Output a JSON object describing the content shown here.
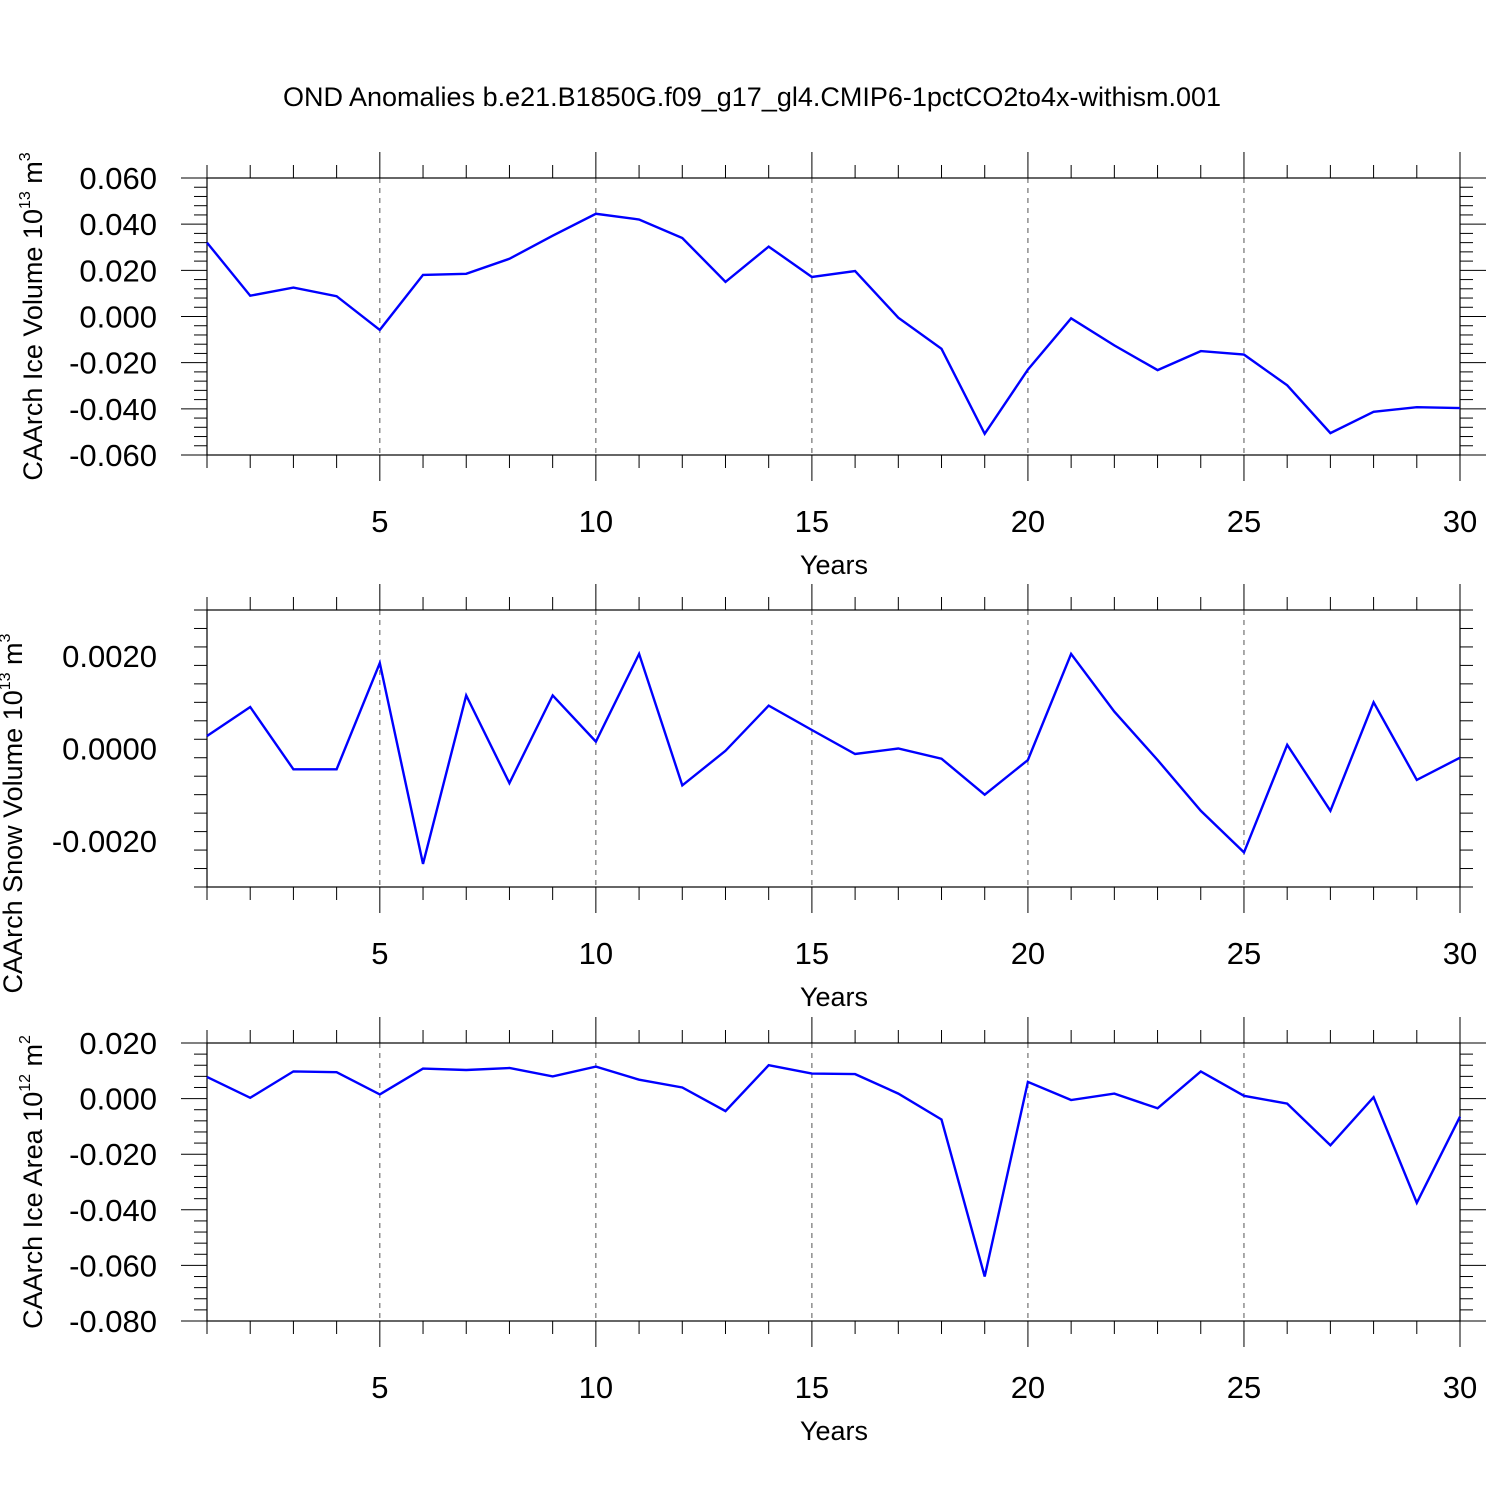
{
  "title": "OND Anomalies b.e21.B1850G.f09_g17_gl4.CMIP6-1pctCO2to4x-withism.001",
  "colors": {
    "line": "#0000ff",
    "frame": "#000000",
    "grid": "#555555"
  },
  "chart_data": [
    {
      "type": "line",
      "ylabel": "CAArch Ice Volume 10",
      "ylabel_exp": "13",
      "ylabel_unit": " m",
      "ylabel_unit_exp": "3",
      "xlabel": "Years",
      "xlim": [
        1,
        30
      ],
      "ylim": [
        -0.06,
        0.06
      ],
      "xticks": [
        5,
        10,
        15,
        20,
        25,
        30
      ],
      "yticks": [
        -0.06,
        -0.04,
        -0.02,
        0.0,
        0.02,
        0.04,
        0.06
      ],
      "yticklabels": [
        "-0.060",
        "-0.040",
        "-0.020",
        "0.000",
        "0.020",
        "0.040",
        "0.060"
      ],
      "grid": "vertical dashed at major x ticks",
      "x": [
        1,
        2,
        3,
        4,
        5,
        6,
        7,
        8,
        9,
        10,
        11,
        12,
        13,
        14,
        15,
        16,
        17,
        18,
        19,
        20,
        21,
        22,
        23,
        24,
        25,
        26,
        27,
        28,
        29,
        30
      ],
      "values": [
        0.032,
        0.009,
        0.0125,
        0.0088,
        -0.0058,
        0.018,
        0.0185,
        0.025,
        0.035,
        0.0445,
        0.042,
        0.034,
        0.015,
        0.0303,
        0.0171,
        0.0197,
        -0.0005,
        -0.014,
        -0.0508,
        -0.023,
        -0.0008,
        -0.0125,
        -0.0232,
        -0.015,
        -0.0165,
        -0.0298,
        -0.0505,
        -0.0413,
        -0.0393,
        -0.0397
      ]
    },
    {
      "type": "line",
      "ylabel": "CAArch Snow Volume 10",
      "ylabel_exp": "13",
      "ylabel_unit": " m",
      "ylabel_unit_exp": "3",
      "xlabel": "Years",
      "xlim": [
        1,
        30
      ],
      "ylim": [
        -0.003,
        0.003
      ],
      "xticks": [
        5,
        10,
        15,
        20,
        25,
        30
      ],
      "yticks": [
        -0.002,
        0.0,
        0.002
      ],
      "yticklabels": [
        "-0.0020",
        "0.0000",
        "0.0020"
      ],
      "grid": "vertical dashed at major x ticks",
      "x": [
        1,
        2,
        3,
        4,
        5,
        6,
        7,
        8,
        9,
        10,
        11,
        12,
        13,
        14,
        15,
        16,
        17,
        18,
        19,
        20,
        21,
        22,
        23,
        24,
        25,
        26,
        27,
        28,
        29,
        30
      ],
      "values": [
        0.00027,
        0.0009,
        -0.00045,
        -0.00045,
        0.00185,
        -0.0025,
        0.00115,
        -0.00075,
        0.00115,
        0.00015,
        0.00205,
        -0.0008,
        -5e-05,
        0.00093,
        0.0004,
        -0.00012,
        0.0,
        -0.00022,
        -0.001,
        -0.00025,
        0.00205,
        0.0008,
        -0.00025,
        -0.00135,
        -0.00225,
        8e-05,
        -0.00135,
        0.001,
        -0.00068,
        -0.0002
      ]
    },
    {
      "type": "line",
      "ylabel": "CAArch Ice Area 10",
      "ylabel_exp": "12",
      "ylabel_unit": " m",
      "ylabel_unit_exp": "2",
      "xlabel": "Years",
      "xlim": [
        1,
        30
      ],
      "ylim": [
        -0.08,
        0.02
      ],
      "xticks": [
        5,
        10,
        15,
        20,
        25,
        30
      ],
      "yticks": [
        -0.08,
        -0.06,
        -0.04,
        -0.02,
        0.0,
        0.02
      ],
      "yticklabels": [
        "-0.080",
        "-0.060",
        "-0.040",
        "-0.020",
        "0.000",
        "0.020"
      ],
      "grid": "vertical dashed at major x ticks",
      "x": [
        1,
        2,
        3,
        4,
        5,
        6,
        7,
        8,
        9,
        10,
        11,
        12,
        13,
        14,
        15,
        16,
        17,
        18,
        19,
        20,
        21,
        22,
        23,
        24,
        25,
        26,
        27,
        28,
        29,
        30
      ],
      "values": [
        0.0078,
        0.0003,
        0.0098,
        0.0095,
        0.0015,
        0.0108,
        0.0103,
        0.011,
        0.008,
        0.0115,
        0.0068,
        0.004,
        -0.0045,
        0.012,
        0.009,
        0.0088,
        0.0018,
        -0.0075,
        -0.064,
        0.006,
        -0.0005,
        0.0018,
        -0.0035,
        0.0098,
        0.001,
        -0.0018,
        -0.0168,
        0.0005,
        -0.0375,
        -0.0065
      ]
    }
  ]
}
